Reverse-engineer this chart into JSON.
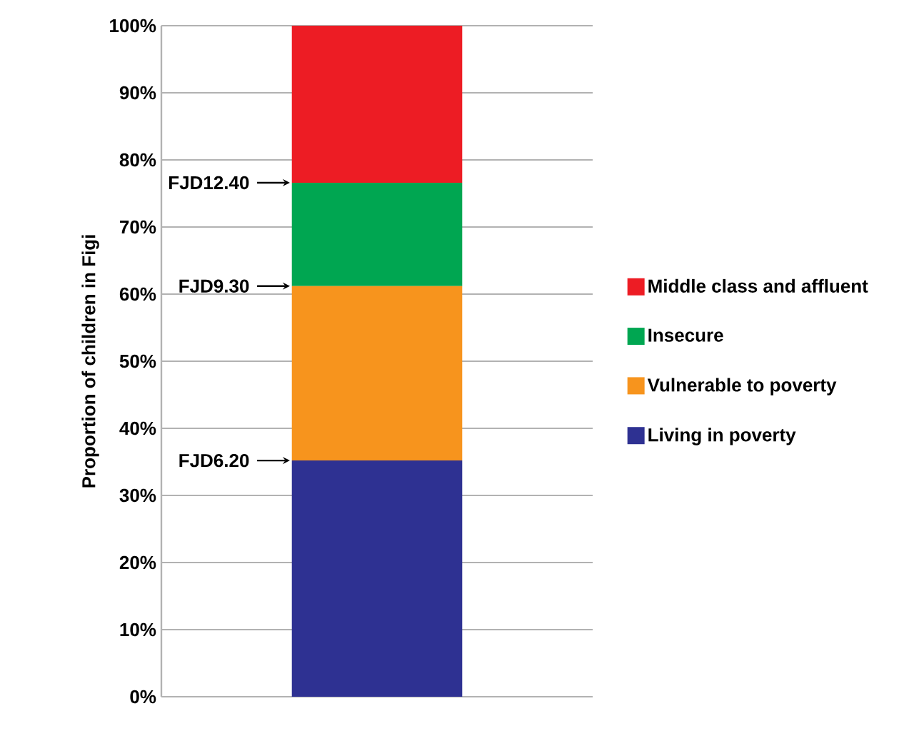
{
  "chart_data": {
    "type": "bar",
    "stacked": true,
    "categories": [
      null
    ],
    "series": [
      {
        "name": "Living in poverty",
        "color": "#2e3192",
        "values": [
          35.2
        ]
      },
      {
        "name": "Vulnerable to poverty",
        "color": "#f7941d",
        "values": [
          26.0
        ]
      },
      {
        "name": "Insecure",
        "color": "#00a651",
        "values": [
          15.4
        ]
      },
      {
        "name": "Middle class and affluent",
        "color": "#ed1c24",
        "values": [
          23.4
        ]
      }
    ],
    "ylabel": "Proportion of children in Figi",
    "ylim": [
      0,
      100
    ],
    "yticks": [
      {
        "value": 0,
        "label": "0%"
      },
      {
        "value": 10,
        "label": "10%"
      },
      {
        "value": 20,
        "label": "20%"
      },
      {
        "value": 30,
        "label": "30%"
      },
      {
        "value": 40,
        "label": "40%"
      },
      {
        "value": 50,
        "label": "50%"
      },
      {
        "value": 60,
        "label": "60%"
      },
      {
        "value": 70,
        "label": "70%"
      },
      {
        "value": 80,
        "label": "80%"
      },
      {
        "value": 90,
        "label": "90%"
      },
      {
        "value": 100,
        "label": "100%"
      }
    ],
    "annotations": [
      "FJD6.20",
      "FJD9.30",
      "FJD12.40"
    ],
    "grid": "y",
    "legend": "right"
  }
}
